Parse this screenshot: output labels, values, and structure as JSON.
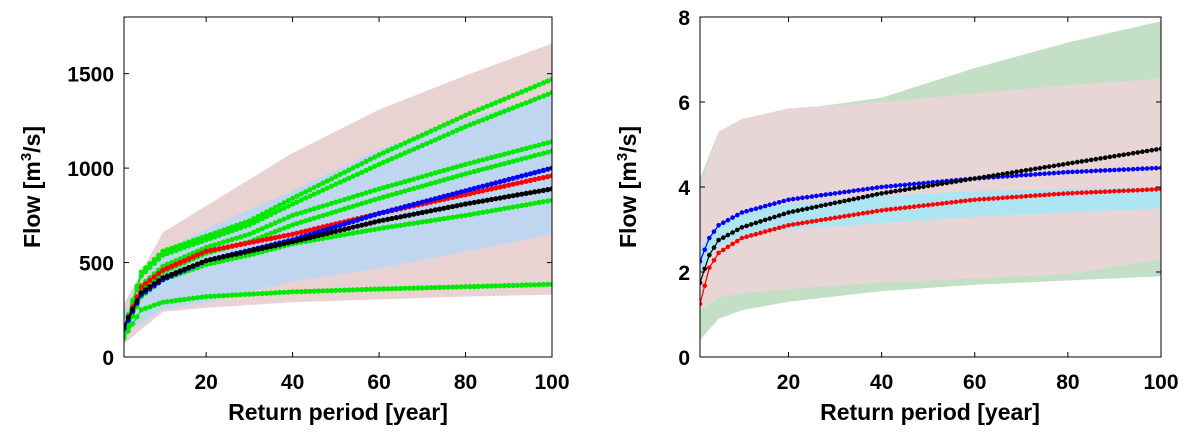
{
  "chart_data": [
    {
      "type": "line",
      "xlabel": "Return period [year]",
      "ylabel": "Flow [m^3/s]",
      "ylabel_base": "Flow [m",
      "ylabel_sup": "3",
      "ylabel_tail": "/s]",
      "xlim": [
        1,
        100
      ],
      "ylim": [
        0,
        1800
      ],
      "xticks": [
        "20",
        "40",
        "60",
        "80",
        "100"
      ],
      "yticks": [
        "0",
        "500",
        "1000",
        "1500"
      ],
      "grid": false,
      "bands": [
        {
          "color": "#e8d2d2",
          "x": [
            1,
            10,
            20,
            40,
            60,
            80,
            100
          ],
          "lower": [
            70,
            240,
            260,
            290,
            305,
            320,
            330
          ],
          "upper": [
            280,
            660,
            800,
            1080,
            1310,
            1490,
            1660
          ]
        },
        {
          "color": "#d3e7d3",
          "x": [
            1,
            10,
            20,
            40,
            60,
            80,
            100
          ],
          "lower": [
            130,
            300,
            360,
            440,
            520,
            590,
            650
          ],
          "upper": [
            230,
            560,
            640,
            830,
            980,
            1130,
            1280
          ]
        },
        {
          "color": "#c0d6f0",
          "x": [
            1,
            10,
            20,
            40,
            60,
            80,
            100
          ],
          "lower": [
            120,
            250,
            290,
            400,
            470,
            560,
            650
          ],
          "upper": [
            240,
            560,
            680,
            880,
            1100,
            1260,
            1400
          ]
        }
      ],
      "series": [
        {
          "color": "#00e800",
          "x": [
            1,
            5,
            10,
            20,
            30,
            40,
            60,
            80,
            100
          ],
          "y": [
            150,
            450,
            560,
            640,
            720,
            840,
            1070,
            1280,
            1470
          ]
        },
        {
          "color": "#00e800",
          "x": [
            1,
            5,
            10,
            20,
            30,
            40,
            60,
            80,
            100
          ],
          "y": [
            140,
            430,
            540,
            620,
            700,
            810,
            1020,
            1220,
            1400
          ]
        },
        {
          "color": "#00e800",
          "x": [
            1,
            5,
            10,
            20,
            30,
            40,
            60,
            80,
            100
          ],
          "y": [
            130,
            380,
            480,
            580,
            650,
            750,
            890,
            1020,
            1140
          ]
        },
        {
          "color": "#00e800",
          "x": [
            1,
            5,
            10,
            20,
            30,
            40,
            60,
            80,
            100
          ],
          "y": [
            120,
            350,
            450,
            550,
            610,
            700,
            840,
            970,
            1090
          ]
        },
        {
          "color": "#00e800",
          "x": [
            1,
            5,
            10,
            20,
            30,
            40,
            60,
            80,
            100
          ],
          "y": [
            110,
            320,
            410,
            490,
            540,
            600,
            680,
            750,
            830
          ]
        },
        {
          "color": "#00e800",
          "x": [
            1,
            5,
            10,
            20,
            40,
            60,
            80,
            100
          ],
          "y": [
            100,
            250,
            290,
            320,
            345,
            360,
            372,
            385
          ]
        },
        {
          "color": "#ff0000",
          "x": [
            1,
            5,
            10,
            20,
            40,
            60,
            80,
            100
          ],
          "y": [
            160,
            370,
            460,
            560,
            650,
            760,
            860,
            960
          ]
        },
        {
          "color": "#0000ff",
          "x": [
            1,
            5,
            10,
            20,
            40,
            60,
            80,
            100
          ],
          "y": [
            150,
            330,
            410,
            510,
            620,
            760,
            880,
            1000
          ]
        },
        {
          "color": "#000000",
          "x": [
            1,
            5,
            10,
            20,
            40,
            60,
            80,
            100
          ],
          "y": [
            165,
            340,
            420,
            510,
            610,
            720,
            810,
            890
          ]
        }
      ]
    },
    {
      "type": "line",
      "xlabel": "Return period [year]",
      "ylabel": "Flow [m^3/s]",
      "ylabel_base": "Flow [m",
      "ylabel_sup": "3",
      "ylabel_tail": "/s]",
      "xlim": [
        1,
        100
      ],
      "ylim": [
        0,
        8
      ],
      "xticks": [
        "20",
        "40",
        "60",
        "80",
        "100"
      ],
      "yticks": [
        "0",
        "2",
        "4",
        "6",
        "8"
      ],
      "grid": false,
      "bands": [
        {
          "color": "#c3dfc6",
          "x": [
            1,
            5,
            10,
            20,
            40,
            60,
            80,
            100
          ],
          "lower": [
            0.4,
            0.9,
            1.1,
            1.3,
            1.55,
            1.7,
            1.8,
            1.9
          ],
          "upper": [
            4.2,
            5.3,
            5.6,
            5.8,
            6.1,
            6.8,
            7.4,
            7.9
          ]
        },
        {
          "color": "#e8d6d6",
          "x": [
            1,
            5,
            10,
            20,
            40,
            60,
            80,
            100
          ],
          "lower": [
            1.1,
            1.4,
            1.5,
            1.6,
            1.75,
            1.85,
            1.95,
            2.3
          ],
          "upper": [
            4.0,
            5.3,
            5.6,
            5.85,
            6.0,
            6.2,
            6.4,
            6.55
          ]
        },
        {
          "color": "#aee5f2",
          "x": [
            1,
            5,
            10,
            20,
            40,
            60,
            80,
            100
          ],
          "lower": [
            2.0,
            2.6,
            2.85,
            3.0,
            3.15,
            3.3,
            3.4,
            3.5
          ],
          "upper": [
            2.6,
            3.1,
            3.4,
            3.6,
            3.8,
            3.9,
            3.95,
            4.0
          ]
        }
      ],
      "series": [
        {
          "color": "#0000ff",
          "x": [
            1,
            3,
            5,
            10,
            20,
            40,
            60,
            80,
            100
          ],
          "y": [
            2.25,
            2.8,
            3.1,
            3.4,
            3.7,
            4.0,
            4.2,
            4.35,
            4.45
          ]
        },
        {
          "color": "#000000",
          "x": [
            1,
            3,
            5,
            10,
            20,
            40,
            60,
            80,
            100
          ],
          "y": [
            1.75,
            2.4,
            2.75,
            3.05,
            3.4,
            3.85,
            4.2,
            4.55,
            4.9
          ]
        },
        {
          "color": "#ff0000",
          "x": [
            1,
            3,
            5,
            10,
            20,
            40,
            60,
            80,
            100
          ],
          "y": [
            1.25,
            2.1,
            2.45,
            2.8,
            3.1,
            3.45,
            3.7,
            3.85,
            3.95
          ]
        }
      ]
    }
  ]
}
